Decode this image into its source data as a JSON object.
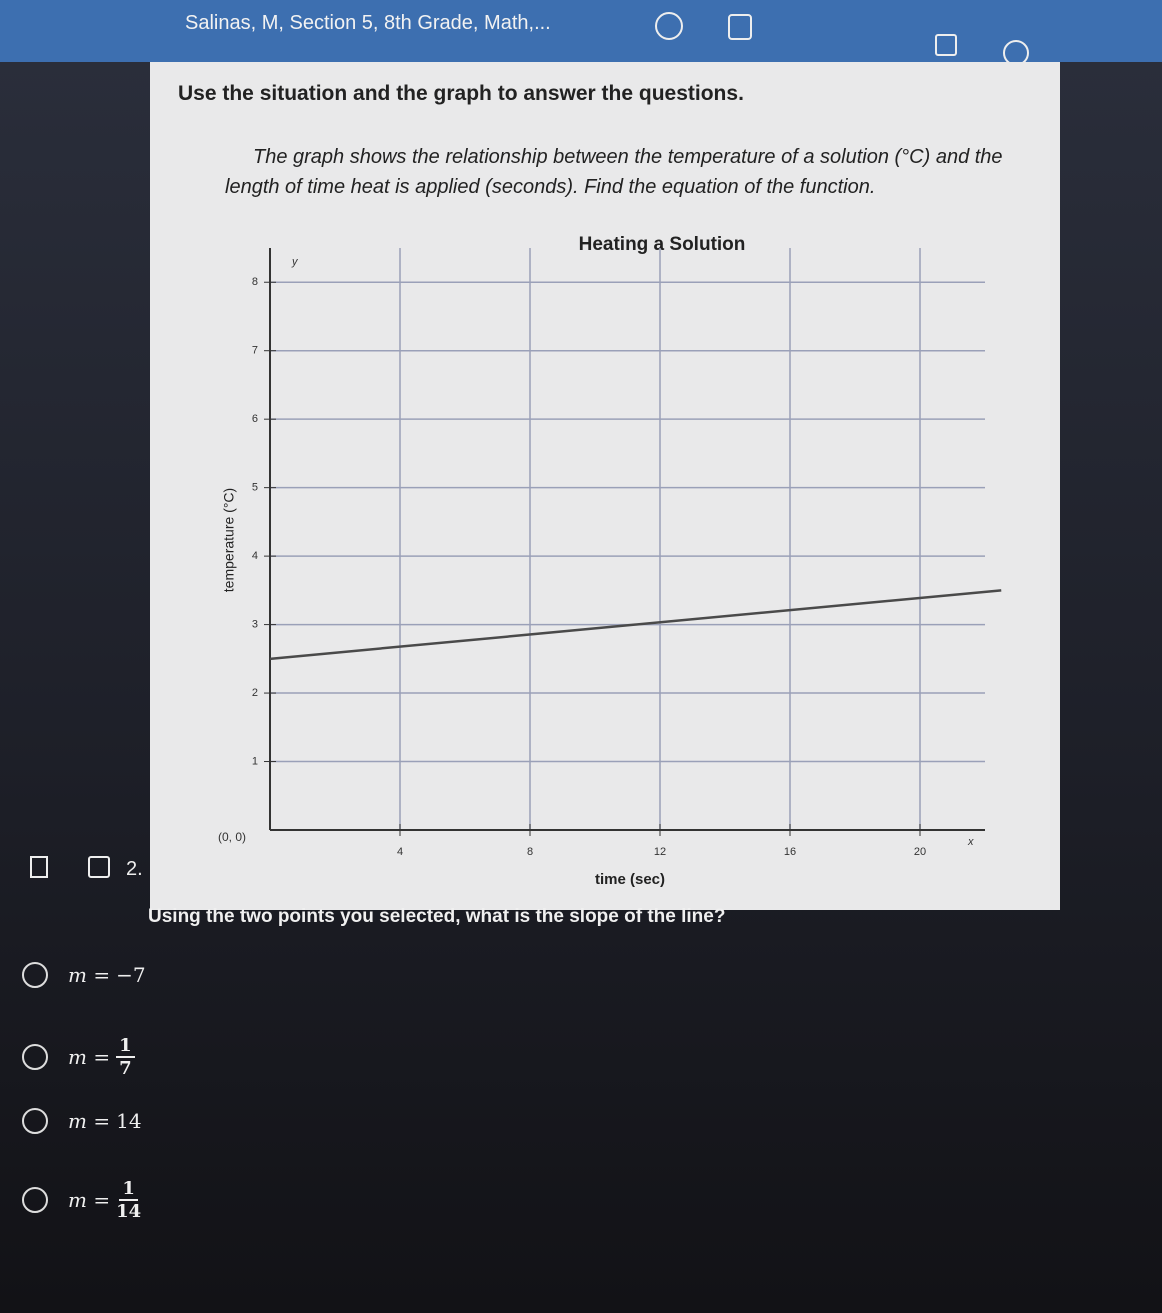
{
  "header": {
    "title": "Salinas, M, Section 5, 8th Grade, Math,..."
  },
  "prompt": "Use the situation and the graph to answer the questions.",
  "description": "The graph shows the relationship between the temperature of a solution (°C) and the length of time heat is applied (seconds). Find the equation of the function.",
  "chart_data": {
    "type": "line",
    "title": "Heating a Solution",
    "x_label": "time (sec)",
    "y_label": "temperature (°C)",
    "origin_label": "(0, 0)",
    "x_symbol": "x",
    "y_symbol": "y",
    "x": [
      0,
      22.5
    ],
    "series": [
      {
        "name": "temperature",
        "color": "#4a4a4a",
        "values": [
          2.5,
          3.5
        ]
      }
    ],
    "xlim": [
      0,
      22
    ],
    "ylim": [
      0,
      8.5
    ],
    "xticks": [
      4,
      8,
      12,
      16,
      20
    ],
    "yticks": [
      1,
      2,
      3,
      4,
      5,
      6,
      7,
      8
    ],
    "grid": true
  },
  "question": {
    "number": "2.",
    "text": "Using the two points you selected, what is the slope of the line?",
    "options": [
      {
        "prefix": "m =",
        "value": "−7"
      },
      {
        "prefix": "m =",
        "numerator": "1",
        "denominator": "7"
      },
      {
        "prefix": "m =",
        "value": "14"
      },
      {
        "prefix": "m =",
        "numerator": "1",
        "denominator": "14"
      }
    ]
  }
}
